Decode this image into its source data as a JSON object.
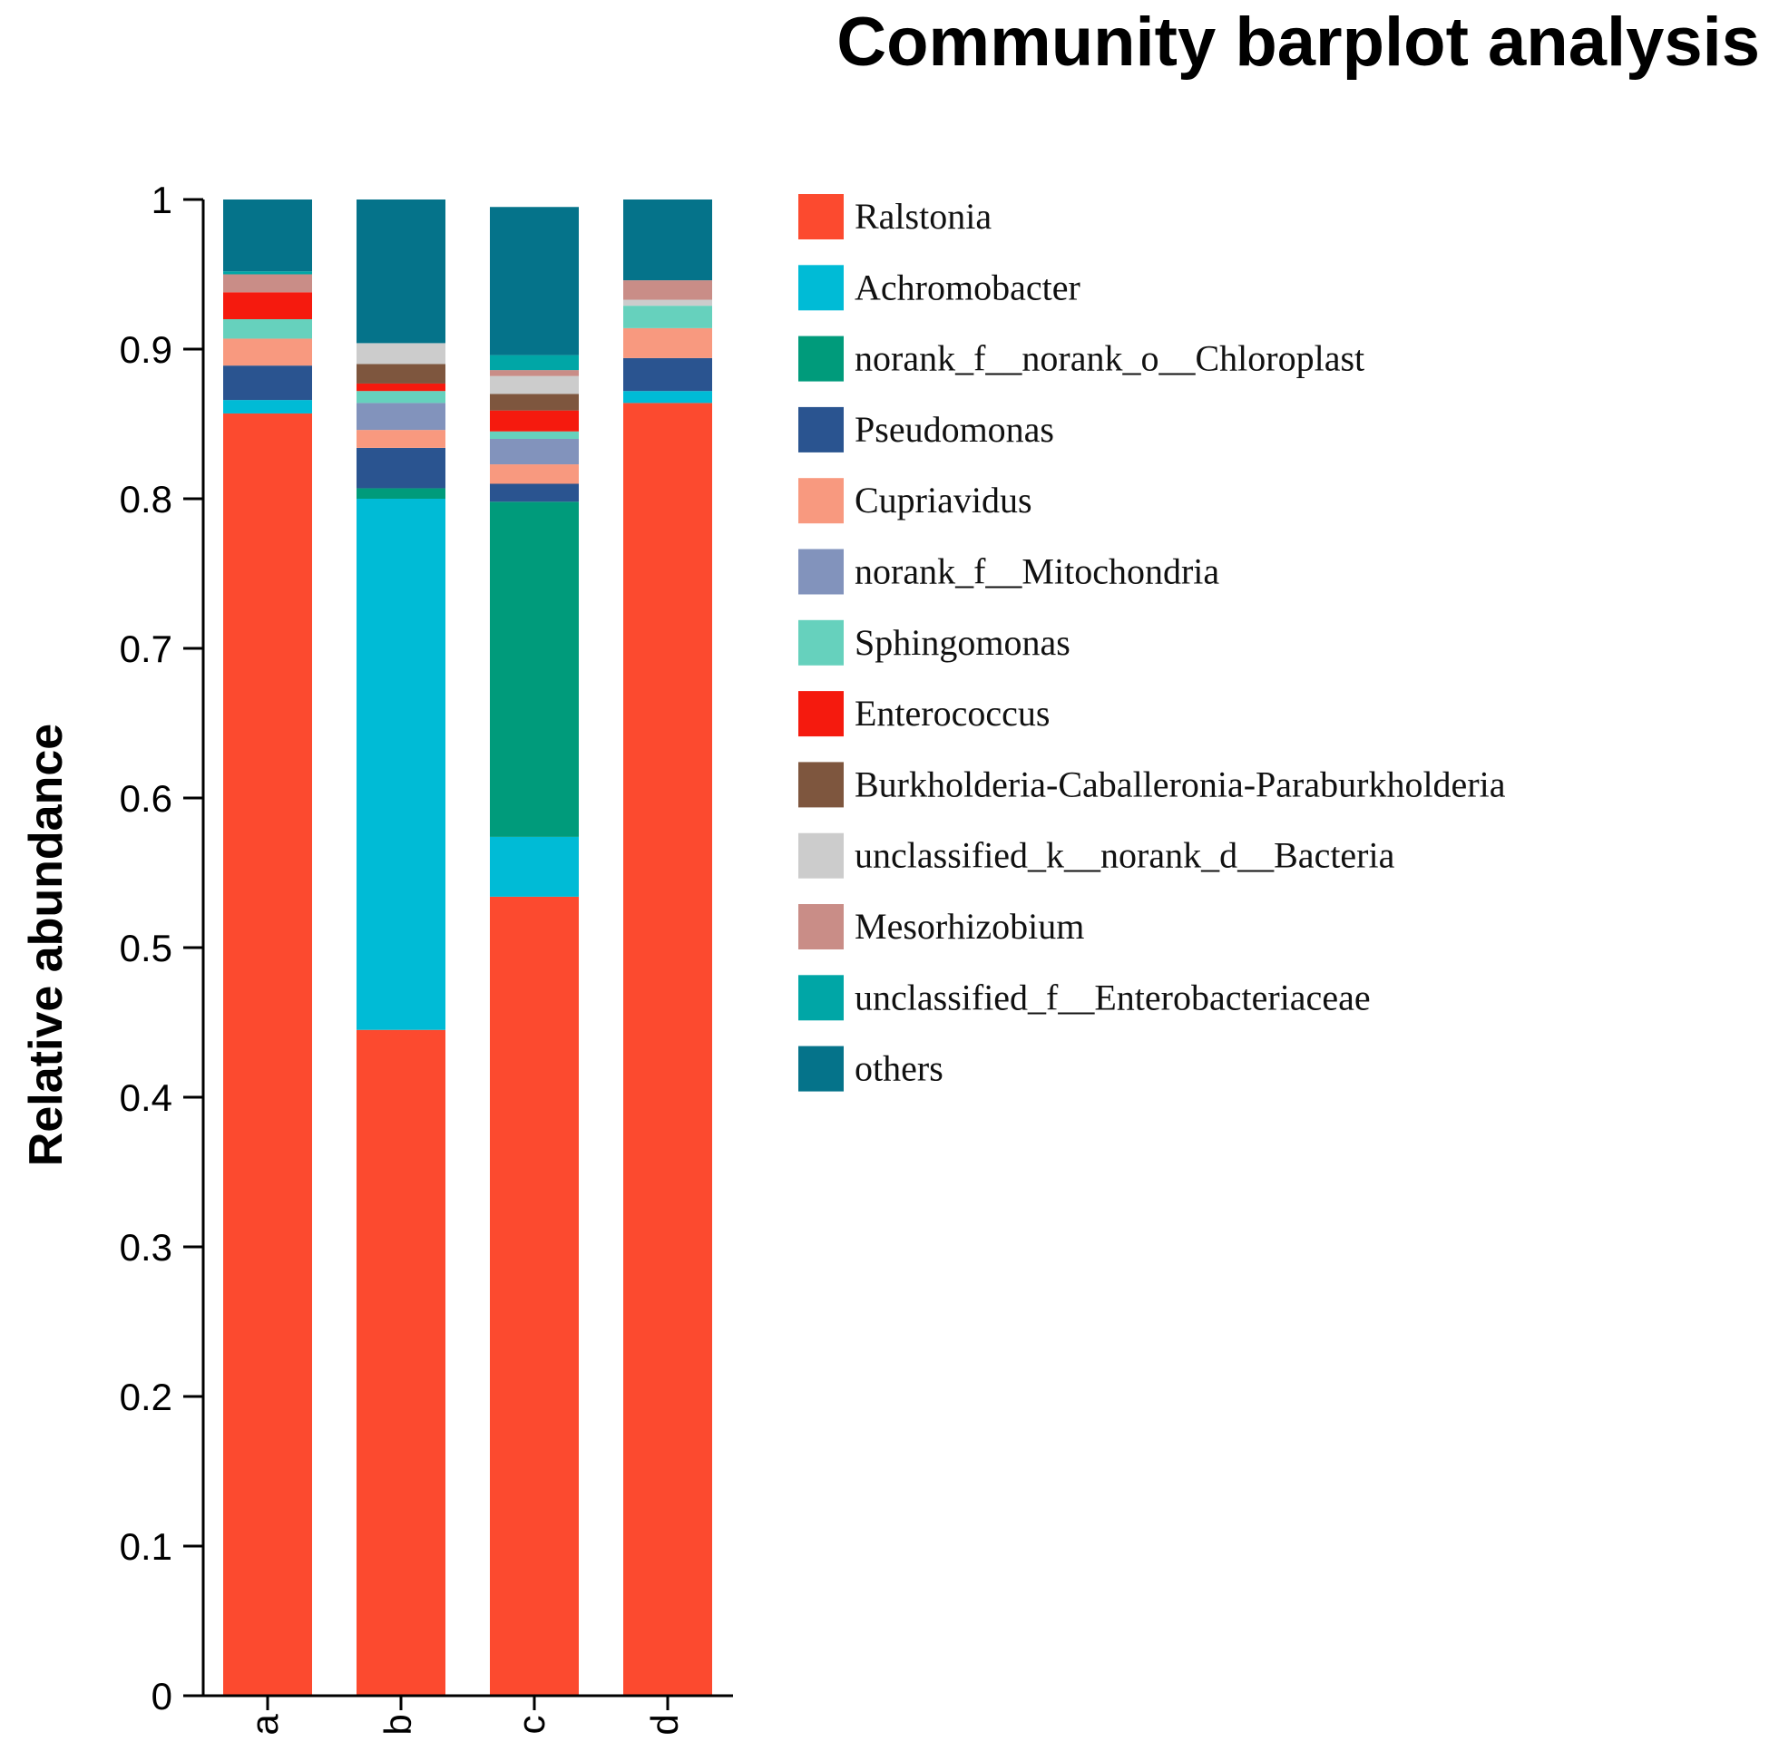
{
  "chart_data": {
    "type": "bar",
    "stacked": true,
    "title": "Community barplot analysis",
    "xlabel": "",
    "ylabel": "Relative abundance",
    "ylim": [
      0,
      1
    ],
    "yticks": [
      "0",
      "0.1",
      "0.2",
      "0.3",
      "0.4",
      "0.5",
      "0.6",
      "0.7",
      "0.8",
      "0.9",
      "1"
    ],
    "categories": [
      "a",
      "b",
      "c",
      "d"
    ],
    "legend_position": "right",
    "series": [
      {
        "name": "Ralstonia",
        "color": "#FC4A2F",
        "values": [
          0.857,
          0.445,
          0.534,
          0.864
        ]
      },
      {
        "name": "Achromobacter",
        "color": "#00BBD6",
        "values": [
          0.009,
          0.355,
          0.04,
          0.008
        ]
      },
      {
        "name": "norank_f__norank_o__Chloroplast",
        "color": "#009B7B",
        "values": [
          0.0,
          0.007,
          0.224,
          0.0
        ]
      },
      {
        "name": "Pseudomonas",
        "color": "#2A5490",
        "values": [
          0.023,
          0.027,
          0.012,
          0.022
        ]
      },
      {
        "name": "Cupriavidus",
        "color": "#F8997F",
        "values": [
          0.018,
          0.012,
          0.013,
          0.02
        ]
      },
      {
        "name": "norank_f__Mitochondria",
        "color": "#8293BC",
        "values": [
          0.0,
          0.018,
          0.017,
          0.0
        ]
      },
      {
        "name": "Sphingomonas",
        "color": "#66D1BD",
        "values": [
          0.013,
          0.008,
          0.005,
          0.015
        ]
      },
      {
        "name": "Enterococcus",
        "color": "#F51A0E",
        "values": [
          0.018,
          0.005,
          0.014,
          0.0
        ]
      },
      {
        "name": "Burkholderia-Caballeronia-Paraburkholderia",
        "color": "#7E563E",
        "values": [
          0.0,
          0.013,
          0.011,
          0.0
        ]
      },
      {
        "name": "unclassified_k__norank_d__Bacteria",
        "color": "#CCCCCC",
        "values": [
          0.0,
          0.014,
          0.012,
          0.004
        ]
      },
      {
        "name": "Mesorhizobium",
        "color": "#C98D87",
        "values": [
          0.012,
          0.0,
          0.004,
          0.013
        ]
      },
      {
        "name": "unclassified_f__Enterobacteriaceae",
        "color": "#00A6A6",
        "values": [
          0.002,
          0.0,
          0.01,
          0.0
        ]
      },
      {
        "name": "others",
        "color": "#05738A",
        "values": [
          0.048,
          0.096,
          0.099,
          0.054
        ]
      }
    ]
  }
}
